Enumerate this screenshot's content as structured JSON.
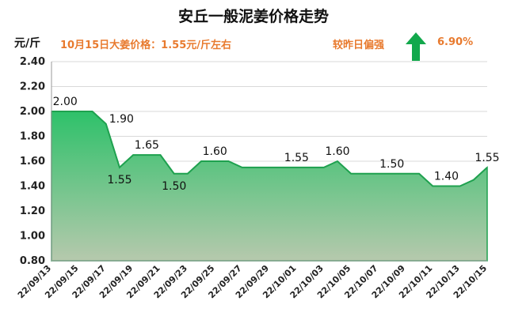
{
  "header": {
    "title": "安丘一般泥姜价格走势",
    "unit": "元/斤",
    "price_note": "10月15日大姜价格：1.55元/斤左右",
    "compare_label": "较昨日偏强",
    "compare_value": "6.90%",
    "trend_icon": "up-arrow-icon"
  },
  "colors": {
    "accent_orange": "#e87a2e",
    "area_top": "#2ec16a",
    "area_bottom": "#b6c9ad",
    "line": "#1fa14f",
    "arrow": "#12a84c"
  },
  "chart_data": {
    "type": "area",
    "title": "安丘一般泥姜价格走势",
    "ylabel": "元/斤",
    "xlabel": "",
    "ylim": [
      0.8,
      2.4
    ],
    "yticks": [
      "0.80",
      "1.00",
      "1.20",
      "1.40",
      "1.60",
      "1.80",
      "2.00",
      "2.20",
      "2.40"
    ],
    "grid": true,
    "x": [
      "22/09/13",
      "22/09/14",
      "22/09/15",
      "22/09/16",
      "22/09/17",
      "22/09/18",
      "22/09/19",
      "22/09/20",
      "22/09/21",
      "22/09/22",
      "22/09/23",
      "22/09/24",
      "22/09/25",
      "22/09/26",
      "22/09/27",
      "22/09/28",
      "22/09/29",
      "22/09/30",
      "22/10/01",
      "22/10/02",
      "22/10/03",
      "22/10/04",
      "22/10/05",
      "22/10/06",
      "22/10/07",
      "22/10/08",
      "22/10/09",
      "22/10/10",
      "22/10/11",
      "22/10/12",
      "22/10/13",
      "22/10/14",
      "22/10/15"
    ],
    "xtick_labels": [
      "22/09/13",
      "22/09/15",
      "22/09/17",
      "22/09/19",
      "22/09/21",
      "22/09/23",
      "22/09/25",
      "22/09/27",
      "22/09/29",
      "22/10/01",
      "22/10/03",
      "22/10/05",
      "22/10/07",
      "22/10/09",
      "22/10/11",
      "22/10/13",
      "22/10/15"
    ],
    "values": [
      2.0,
      2.0,
      2.0,
      2.0,
      1.9,
      1.55,
      1.65,
      1.65,
      1.65,
      1.5,
      1.5,
      1.6,
      1.6,
      1.6,
      1.55,
      1.55,
      1.55,
      1.55,
      1.55,
      1.55,
      1.55,
      1.6,
      1.5,
      1.5,
      1.5,
      1.5,
      1.5,
      1.5,
      1.4,
      1.4,
      1.4,
      1.45,
      1.55
    ],
    "data_labels": [
      {
        "index": 1,
        "text": "2.00",
        "pos": "above"
      },
      {
        "index": 4,
        "text": "1.90",
        "pos": "right"
      },
      {
        "index": 5,
        "text": "1.55",
        "pos": "below"
      },
      {
        "index": 7,
        "text": "1.65",
        "pos": "above"
      },
      {
        "index": 9,
        "text": "1.50",
        "pos": "below"
      },
      {
        "index": 12,
        "text": "1.60",
        "pos": "above"
      },
      {
        "index": 18,
        "text": "1.55",
        "pos": "above"
      },
      {
        "index": 21,
        "text": "1.60",
        "pos": "above"
      },
      {
        "index": 25,
        "text": "1.50",
        "pos": "above"
      },
      {
        "index": 29,
        "text": "1.40",
        "pos": "above"
      },
      {
        "index": 32,
        "text": "1.55",
        "pos": "above"
      }
    ]
  }
}
